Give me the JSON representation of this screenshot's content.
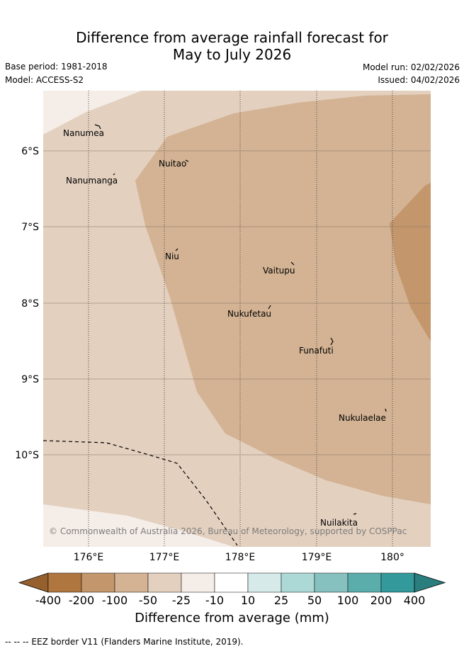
{
  "title": {
    "line1": "Difference from average rainfall forecast for",
    "line2": "May to July 2026"
  },
  "meta": {
    "base_period": "Base period: 1981-2018",
    "model": "Model: ACCESS-S2",
    "model_run": "Model run: 02/02/2026",
    "issued": "Issued: 04/02/2026"
  },
  "map": {
    "lon_labels": [
      "176°E",
      "177°E",
      "178°E",
      "179°E",
      "180°"
    ],
    "lat_labels": [
      "6°S",
      "7°S",
      "8°S",
      "9°S",
      "10°S"
    ],
    "places": [
      "Nanumea",
      "Nuitao",
      "Nanumanga",
      "Niu",
      "Vaitupu",
      "Nukufetau",
      "Funafuti",
      "Nukulaelae",
      "Nuilakita"
    ],
    "copyright": "© Commonwealth of Australia 2026, Bureau of Meteorology, supported by COSPPac"
  },
  "colorbar": {
    "labels": [
      "-400",
      "-200",
      "-100",
      "-50",
      "-25",
      "-10",
      "10",
      "25",
      "50",
      "100",
      "200",
      "400"
    ],
    "colors": [
      "#955f2e",
      "#b07640",
      "#c3966b",
      "#d3b394",
      "#e3d0bf",
      "#f5ede8",
      "#ffffff",
      "#d6ebe9",
      "#acd8d6",
      "#86c1c0",
      "#5aadaa",
      "#33999a",
      "#2a7e7e"
    ],
    "title": "Difference from average (mm)"
  },
  "footer": "--  --  -- EEZ border V11 (Flanders Marine Institute, 2019)."
}
